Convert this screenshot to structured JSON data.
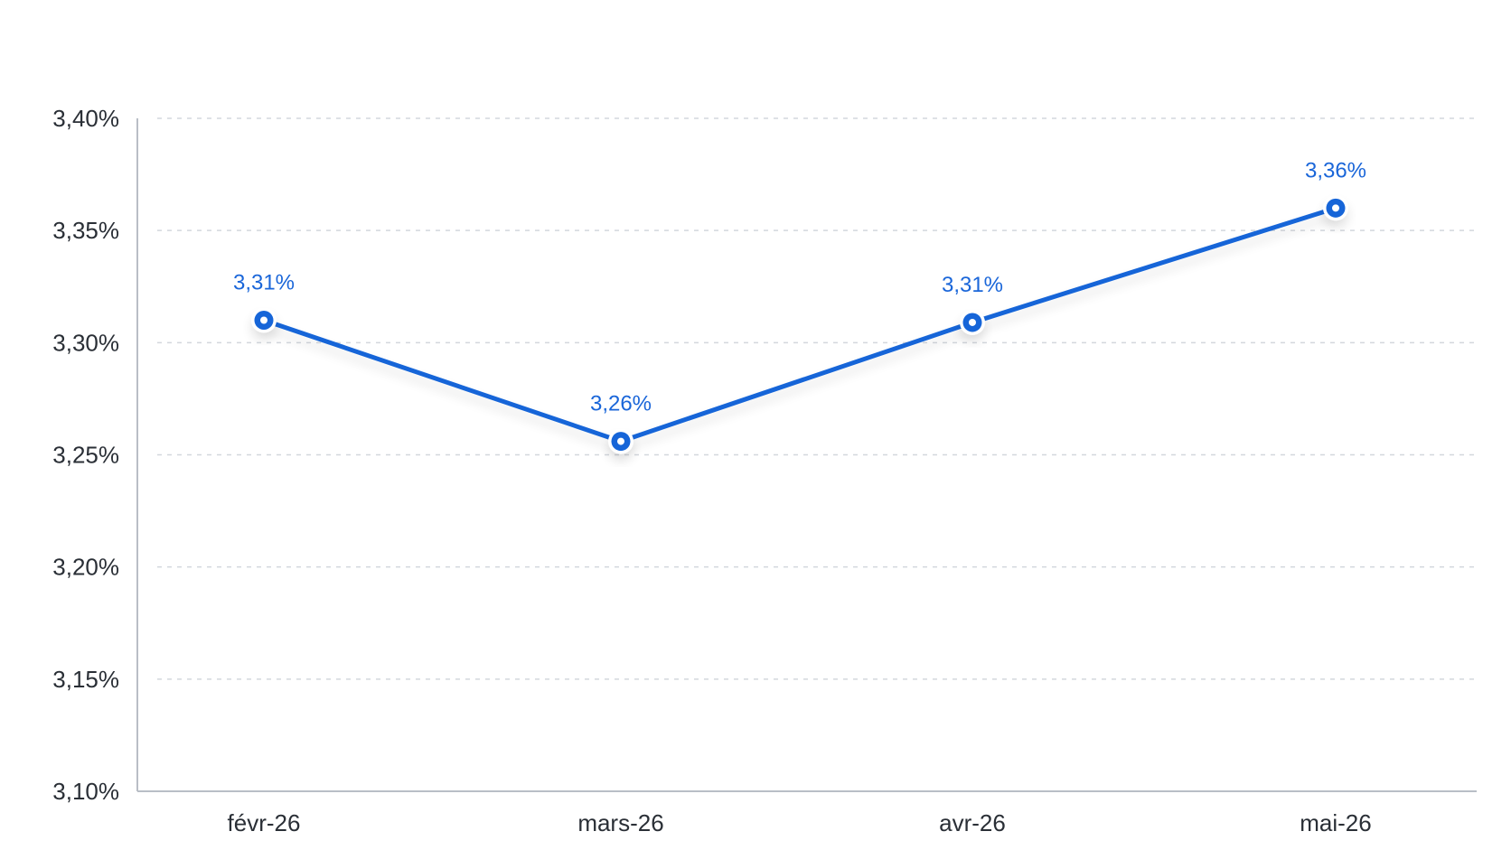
{
  "chart_data": {
    "type": "line",
    "categories": [
      "févr-26",
      "mars-26",
      "avr-26",
      "mai-26"
    ],
    "series": [
      {
        "values": [
          3.31,
          3.256,
          3.309,
          3.36
        ],
        "labels": [
          "3,31%",
          "3,26%",
          "3,31%",
          "3,36%"
        ],
        "color": "#1565d8"
      }
    ],
    "ylim": [
      3.1,
      3.4
    ],
    "yticks": [
      3.4,
      3.35,
      3.3,
      3.25,
      3.2,
      3.15,
      3.1
    ],
    "ytick_labels": [
      "3,40%",
      "3,35%",
      "3,30%",
      "3,25%",
      "3,20%",
      "3,15%",
      "3,10%"
    ],
    "grid": true,
    "legend": "none"
  }
}
